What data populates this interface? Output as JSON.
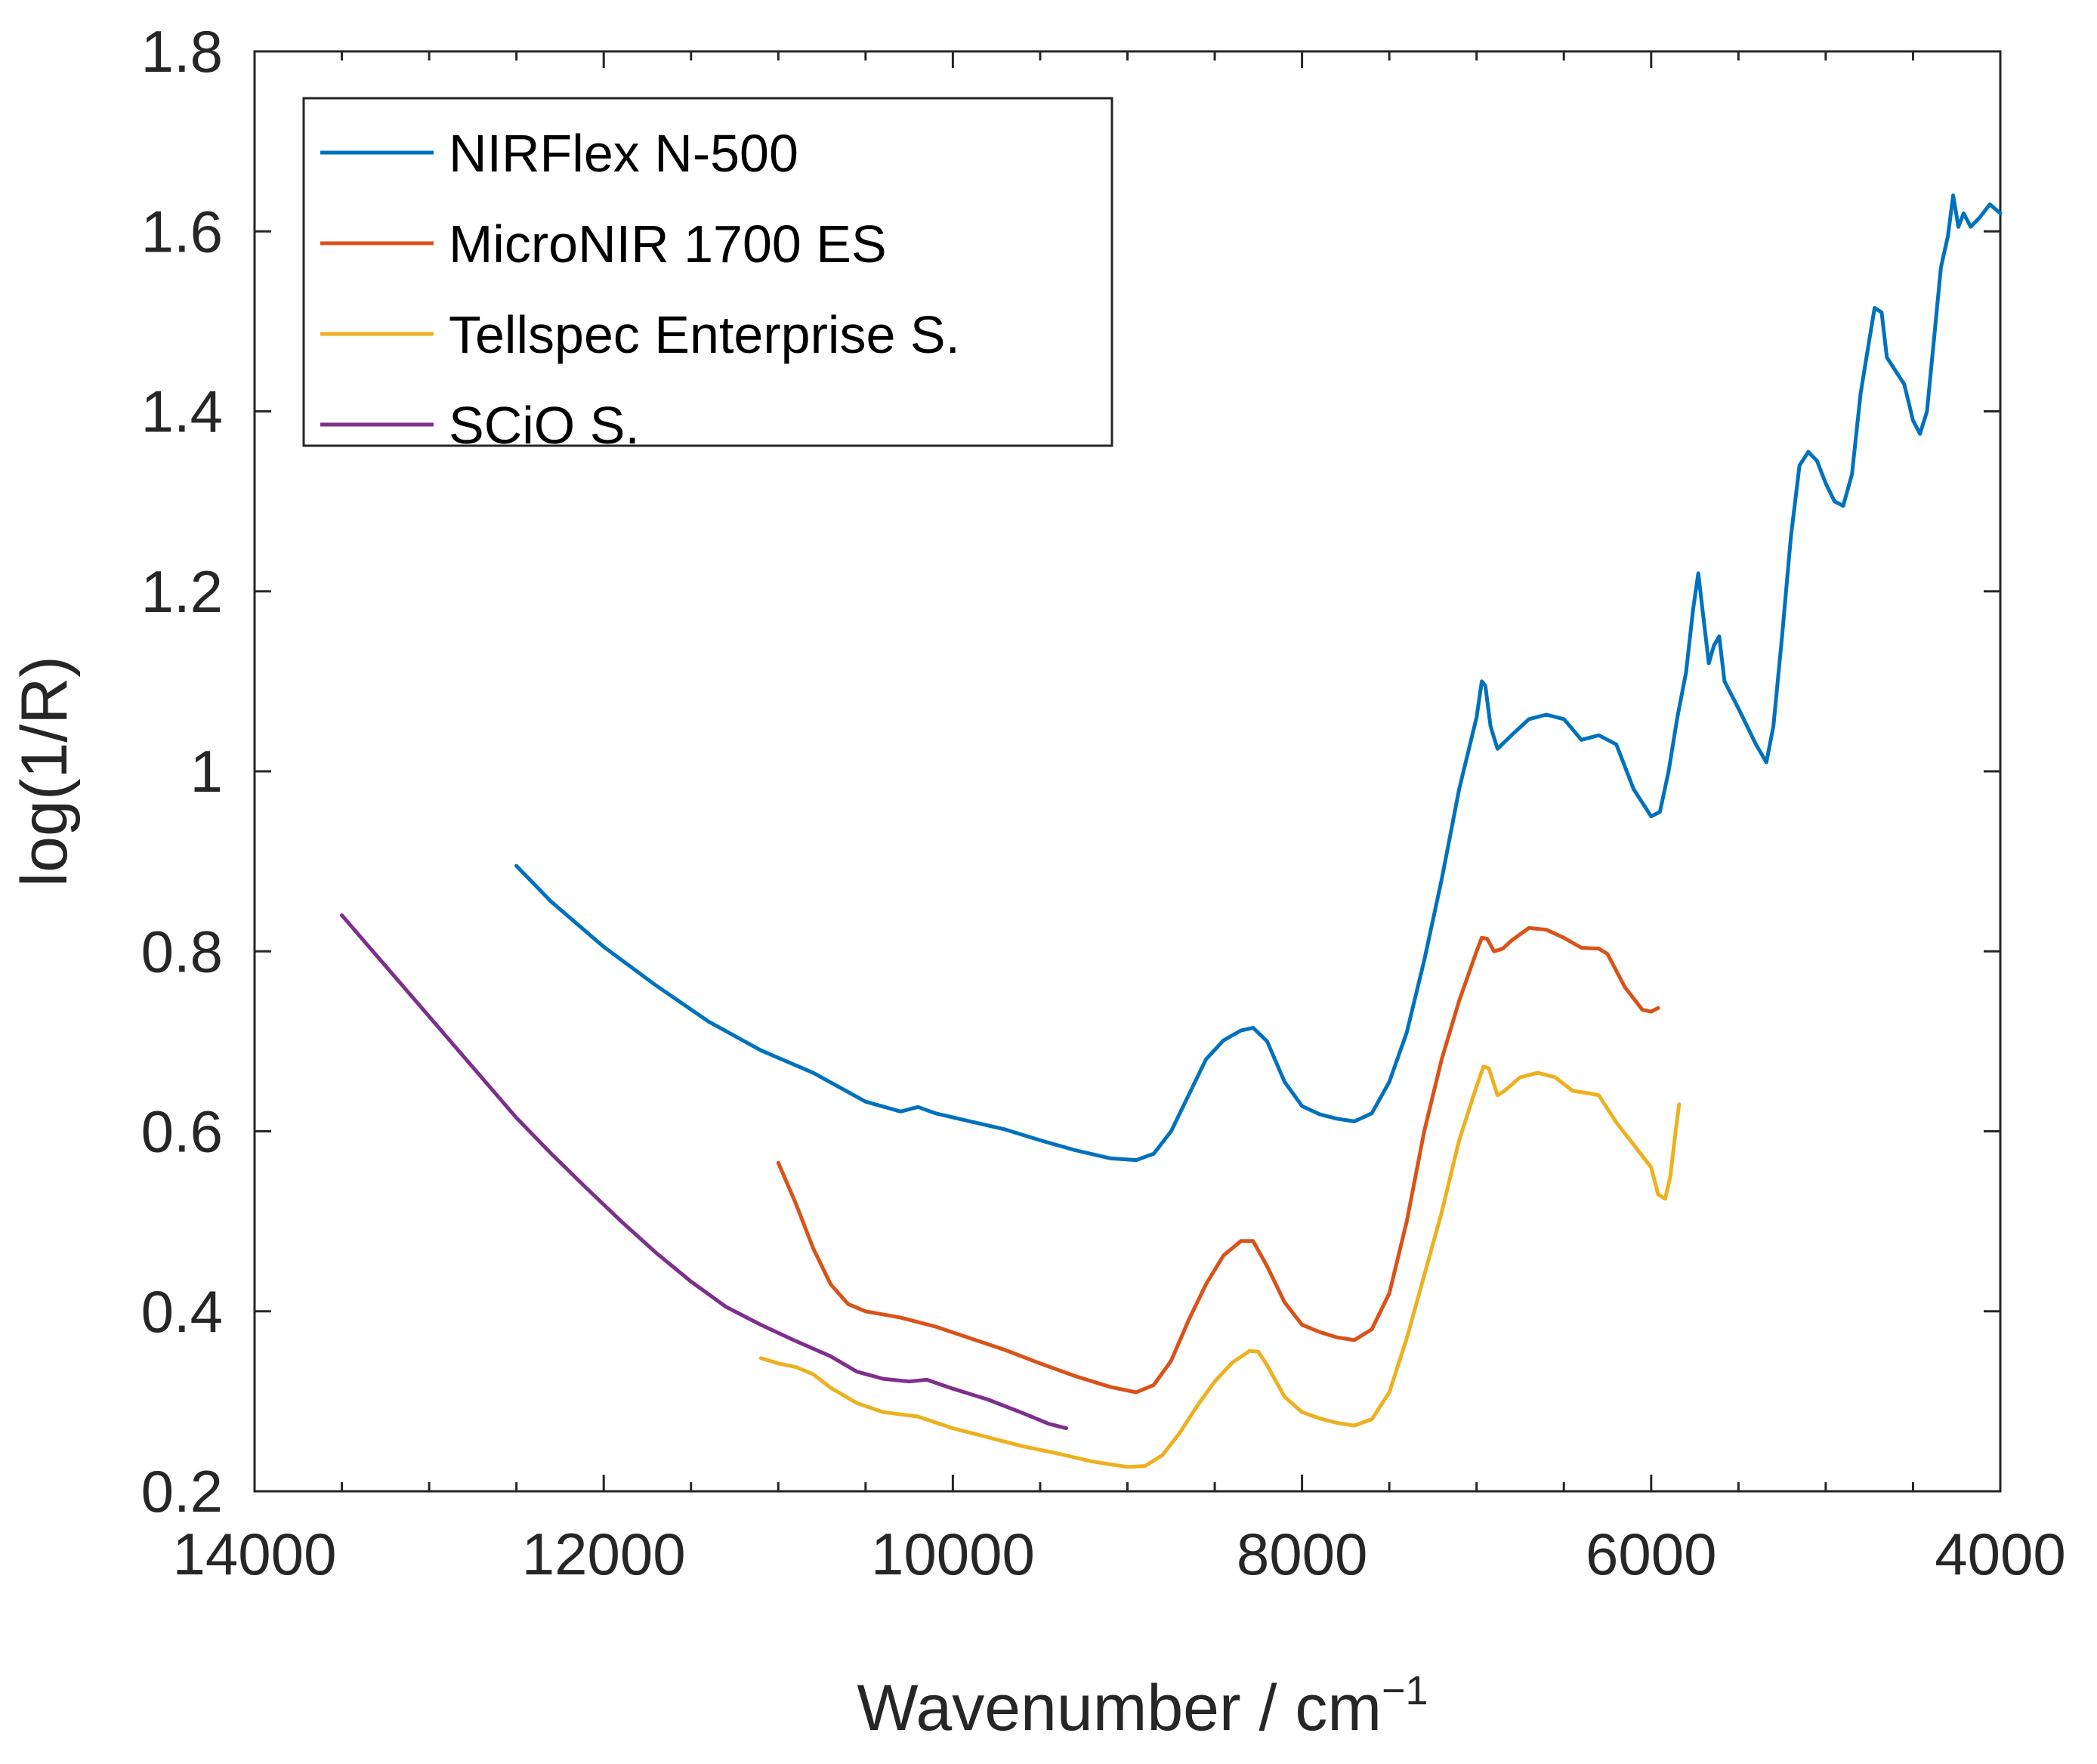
{
  "chart_data": {
    "type": "line",
    "title": "",
    "xlabel": "Wavenumber / cm",
    "xlabel_superscript": "−1",
    "ylabel": "log(1/R)",
    "xlim": [
      14000,
      4000
    ],
    "ylim": [
      0.2,
      1.8
    ],
    "x_reversed": true,
    "grid": false,
    "legend_position": "top-left",
    "xticks": [
      14000,
      12000,
      10000,
      8000,
      6000,
      4000
    ],
    "xtick_labels": [
      "14000",
      "12000",
      "10000",
      "8000",
      "6000",
      "4000"
    ],
    "yticks": [
      0.2,
      0.4,
      0.6,
      0.8,
      1.0,
      1.2,
      1.4,
      1.6,
      1.8
    ],
    "ytick_labels": [
      "0.2",
      "0.4",
      "0.6",
      "0.8",
      "1",
      "1.2",
      "1.4",
      "1.6",
      "1.8"
    ],
    "series": [
      {
        "name": "NIRFlex N-500",
        "color": "#0072BD",
        "points": [
          [
            12500,
            0.895
          ],
          [
            12300,
            0.855
          ],
          [
            12000,
            0.805
          ],
          [
            11700,
            0.762
          ],
          [
            11400,
            0.722
          ],
          [
            11100,
            0.69
          ],
          [
            10800,
            0.665
          ],
          [
            10500,
            0.633
          ],
          [
            10300,
            0.622
          ],
          [
            10200,
            0.627
          ],
          [
            10100,
            0.62
          ],
          [
            9900,
            0.611
          ],
          [
            9700,
            0.602
          ],
          [
            9500,
            0.59
          ],
          [
            9300,
            0.579
          ],
          [
            9100,
            0.57
          ],
          [
            8950,
            0.568
          ],
          [
            8850,
            0.575
          ],
          [
            8750,
            0.6
          ],
          [
            8650,
            0.64
          ],
          [
            8550,
            0.68
          ],
          [
            8450,
            0.701
          ],
          [
            8350,
            0.712
          ],
          [
            8280,
            0.715
          ],
          [
            8200,
            0.7
          ],
          [
            8100,
            0.655
          ],
          [
            8000,
            0.628
          ],
          [
            7900,
            0.619
          ],
          [
            7800,
            0.614
          ],
          [
            7700,
            0.611
          ],
          [
            7600,
            0.62
          ],
          [
            7500,
            0.655
          ],
          [
            7400,
            0.71
          ],
          [
            7300,
            0.79
          ],
          [
            7200,
            0.88
          ],
          [
            7100,
            0.98
          ],
          [
            7000,
            1.06
          ],
          [
            6970,
            1.1
          ],
          [
            6950,
            1.095
          ],
          [
            6920,
            1.05
          ],
          [
            6880,
            1.025
          ],
          [
            6800,
            1.04
          ],
          [
            6700,
            1.058
          ],
          [
            6600,
            1.063
          ],
          [
            6500,
            1.058
          ],
          [
            6400,
            1.035
          ],
          [
            6300,
            1.04
          ],
          [
            6200,
            1.03
          ],
          [
            6100,
            0.98
          ],
          [
            6000,
            0.95
          ],
          [
            5950,
            0.955
          ],
          [
            5900,
            1.0
          ],
          [
            5850,
            1.06
          ],
          [
            5800,
            1.11
          ],
          [
            5760,
            1.18
          ],
          [
            5730,
            1.22
          ],
          [
            5700,
            1.17
          ],
          [
            5670,
            1.12
          ],
          [
            5640,
            1.14
          ],
          [
            5610,
            1.15
          ],
          [
            5580,
            1.1
          ],
          [
            5500,
            1.07
          ],
          [
            5400,
            1.03
          ],
          [
            5340,
            1.01
          ],
          [
            5300,
            1.05
          ],
          [
            5250,
            1.15
          ],
          [
            5200,
            1.26
          ],
          [
            5150,
            1.34
          ],
          [
            5100,
            1.355
          ],
          [
            5050,
            1.345
          ],
          [
            5000,
            1.32
          ],
          [
            4950,
            1.3
          ],
          [
            4900,
            1.295
          ],
          [
            4850,
            1.33
          ],
          [
            4800,
            1.42
          ],
          [
            4750,
            1.48
          ],
          [
            4720,
            1.515
          ],
          [
            4680,
            1.51
          ],
          [
            4650,
            1.46
          ],
          [
            4600,
            1.445
          ],
          [
            4550,
            1.43
          ],
          [
            4500,
            1.39
          ],
          [
            4460,
            1.375
          ],
          [
            4420,
            1.4
          ],
          [
            4380,
            1.48
          ],
          [
            4340,
            1.56
          ],
          [
            4300,
            1.595
          ],
          [
            4270,
            1.64
          ],
          [
            4240,
            1.605
          ],
          [
            4210,
            1.62
          ],
          [
            4170,
            1.605
          ],
          [
            4120,
            1.615
          ],
          [
            4060,
            1.63
          ],
          [
            4000,
            1.62
          ]
        ]
      },
      {
        "name": "MicroNIR 1700 ES",
        "color": "#D95319",
        "points": [
          [
            11000,
            0.565
          ],
          [
            10900,
            0.52
          ],
          [
            10800,
            0.47
          ],
          [
            10700,
            0.43
          ],
          [
            10600,
            0.408
          ],
          [
            10500,
            0.4
          ],
          [
            10300,
            0.393
          ],
          [
            10100,
            0.383
          ],
          [
            9900,
            0.37
          ],
          [
            9700,
            0.357
          ],
          [
            9500,
            0.342
          ],
          [
            9300,
            0.328
          ],
          [
            9100,
            0.316
          ],
          [
            8950,
            0.31
          ],
          [
            8850,
            0.318
          ],
          [
            8750,
            0.345
          ],
          [
            8650,
            0.39
          ],
          [
            8550,
            0.43
          ],
          [
            8450,
            0.462
          ],
          [
            8350,
            0.478
          ],
          [
            8280,
            0.478
          ],
          [
            8200,
            0.45
          ],
          [
            8100,
            0.41
          ],
          [
            8000,
            0.385
          ],
          [
            7900,
            0.377
          ],
          [
            7800,
            0.371
          ],
          [
            7700,
            0.368
          ],
          [
            7600,
            0.38
          ],
          [
            7500,
            0.42
          ],
          [
            7400,
            0.5
          ],
          [
            7300,
            0.6
          ],
          [
            7200,
            0.68
          ],
          [
            7100,
            0.745
          ],
          [
            7000,
            0.8
          ],
          [
            6970,
            0.815
          ],
          [
            6940,
            0.814
          ],
          [
            6900,
            0.8
          ],
          [
            6850,
            0.803
          ],
          [
            6800,
            0.812
          ],
          [
            6700,
            0.826
          ],
          [
            6600,
            0.824
          ],
          [
            6500,
            0.815
          ],
          [
            6400,
            0.804
          ],
          [
            6300,
            0.803
          ],
          [
            6250,
            0.797
          ],
          [
            6150,
            0.76
          ],
          [
            6050,
            0.735
          ],
          [
            6000,
            0.733
          ],
          [
            5960,
            0.737
          ]
        ]
      },
      {
        "name": "Tellspec Enterprise S.",
        "color": "#EDB120",
        "points": [
          [
            11100,
            0.348
          ],
          [
            11000,
            0.342
          ],
          [
            10900,
            0.338
          ],
          [
            10800,
            0.33
          ],
          [
            10700,
            0.315
          ],
          [
            10550,
            0.298
          ],
          [
            10400,
            0.288
          ],
          [
            10200,
            0.283
          ],
          [
            10000,
            0.27
          ],
          [
            9800,
            0.26
          ],
          [
            9600,
            0.25
          ],
          [
            9400,
            0.242
          ],
          [
            9200,
            0.233
          ],
          [
            9000,
            0.227
          ],
          [
            8900,
            0.228
          ],
          [
            8800,
            0.24
          ],
          [
            8700,
            0.265
          ],
          [
            8600,
            0.295
          ],
          [
            8500,
            0.322
          ],
          [
            8400,
            0.343
          ],
          [
            8300,
            0.356
          ],
          [
            8250,
            0.355
          ],
          [
            8200,
            0.34
          ],
          [
            8100,
            0.305
          ],
          [
            8000,
            0.288
          ],
          [
            7900,
            0.281
          ],
          [
            7800,
            0.276
          ],
          [
            7700,
            0.273
          ],
          [
            7600,
            0.28
          ],
          [
            7500,
            0.31
          ],
          [
            7400,
            0.37
          ],
          [
            7300,
            0.44
          ],
          [
            7200,
            0.51
          ],
          [
            7100,
            0.59
          ],
          [
            7000,
            0.65
          ],
          [
            6960,
            0.672
          ],
          [
            6930,
            0.67
          ],
          [
            6880,
            0.64
          ],
          [
            6840,
            0.645
          ],
          [
            6750,
            0.66
          ],
          [
            6650,
            0.665
          ],
          [
            6550,
            0.66
          ],
          [
            6450,
            0.645
          ],
          [
            6350,
            0.642
          ],
          [
            6300,
            0.64
          ],
          [
            6200,
            0.61
          ],
          [
            6100,
            0.585
          ],
          [
            6000,
            0.56
          ],
          [
            5960,
            0.53
          ],
          [
            5920,
            0.525
          ],
          [
            5890,
            0.55
          ],
          [
            5860,
            0.6
          ],
          [
            5840,
            0.63
          ]
        ]
      },
      {
        "name": "SCiO S.",
        "color": "#7E2F8E",
        "points": [
          [
            13500,
            0.84
          ],
          [
            13300,
            0.795
          ],
          [
            13100,
            0.75
          ],
          [
            12900,
            0.705
          ],
          [
            12700,
            0.66
          ],
          [
            12500,
            0.615
          ],
          [
            12300,
            0.575
          ],
          [
            12100,
            0.537
          ],
          [
            11900,
            0.5
          ],
          [
            11700,
            0.465
          ],
          [
            11500,
            0.433
          ],
          [
            11300,
            0.405
          ],
          [
            11100,
            0.385
          ],
          [
            10900,
            0.367
          ],
          [
            10700,
            0.35
          ],
          [
            10550,
            0.333
          ],
          [
            10400,
            0.325
          ],
          [
            10250,
            0.322
          ],
          [
            10150,
            0.324
          ],
          [
            10000,
            0.314
          ],
          [
            9800,
            0.302
          ],
          [
            9600,
            0.287
          ],
          [
            9450,
            0.275
          ],
          [
            9350,
            0.27
          ]
        ]
      }
    ]
  }
}
